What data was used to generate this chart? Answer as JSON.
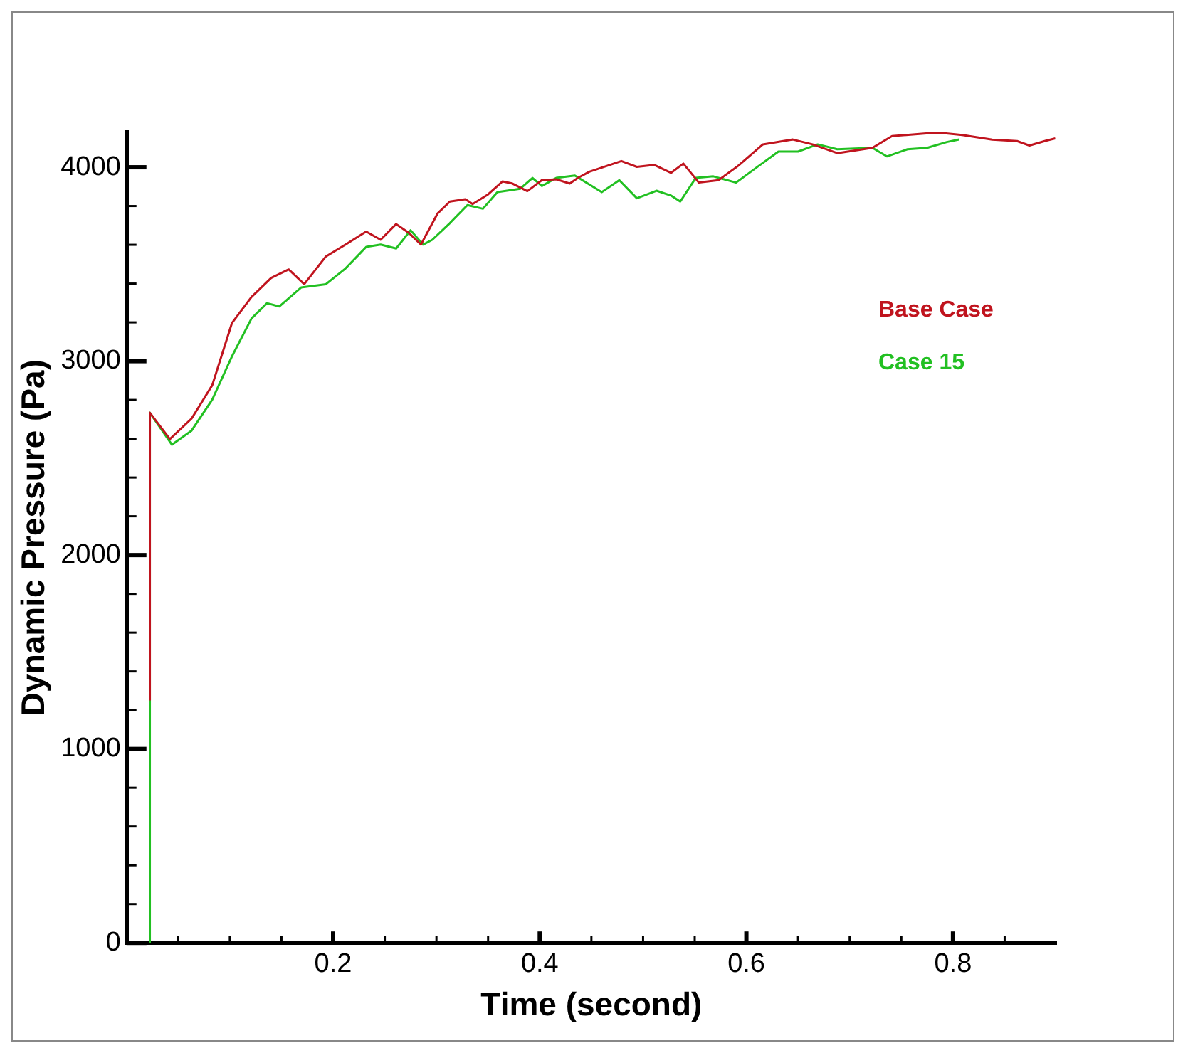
{
  "chart_data": {
    "type": "line",
    "xlabel": "Time (second)",
    "ylabel": "Dynamic Pressure (Pa)",
    "xlim": [
      0,
      0.9
    ],
    "ylim": [
      0,
      4180
    ],
    "xticks": [
      {
        "value": 0.05,
        "label": null
      },
      {
        "value": 0.1,
        "label": null
      },
      {
        "value": 0.15,
        "label": null
      },
      0.2,
      {
        "value": 0.25,
        "label": null
      },
      {
        "value": 0.3,
        "label": null
      },
      {
        "value": 0.35,
        "label": null
      },
      0.4,
      {
        "value": 0.45,
        "label": null
      },
      {
        "value": 0.5,
        "label": null
      },
      {
        "value": 0.55,
        "label": null
      },
      0.6,
      {
        "value": 0.65,
        "label": null
      },
      {
        "value": 0.7,
        "label": null
      },
      {
        "value": 0.75,
        "label": null
      },
      0.8,
      {
        "value": 0.85,
        "label": null
      }
    ],
    "yticks": [
      0,
      {
        "value": 200,
        "label": null
      },
      {
        "value": 400,
        "label": null
      },
      {
        "value": 600,
        "label": null
      },
      {
        "value": 800,
        "label": null
      },
      1000,
      {
        "value": 1200,
        "label": null
      },
      {
        "value": 1400,
        "label": null
      },
      {
        "value": 1600,
        "label": null
      },
      {
        "value": 1800,
        "label": null
      },
      2000,
      {
        "value": 2200,
        "label": null
      },
      {
        "value": 2400,
        "label": null
      },
      {
        "value": 2600,
        "label": null
      },
      {
        "value": 2800,
        "label": null
      },
      3000,
      {
        "value": 3200,
        "label": null
      },
      {
        "value": 3400,
        "label": null
      },
      {
        "value": 3600,
        "label": null
      },
      {
        "value": 3800,
        "label": null
      },
      4000
    ],
    "grid": false,
    "legend": "right",
    "marker": "none",
    "line_style": "solid",
    "series": [
      {
        "name": "Base Case",
        "color": "#c0141e",
        "x": [
          0.0226,
          0.0226,
          0.042,
          0.063,
          0.083,
          0.102,
          0.121,
          0.14,
          0.157,
          0.172,
          0.193,
          0.212,
          0.232,
          0.246,
          0.261,
          0.273,
          0.285,
          0.301,
          0.313,
          0.328,
          0.335,
          0.35,
          0.364,
          0.373,
          0.388,
          0.402,
          0.416,
          0.429,
          0.437,
          0.448,
          0.479,
          0.494,
          0.511,
          0.527,
          0.539,
          0.554,
          0.573,
          0.592,
          0.616,
          0.645,
          0.664,
          0.688,
          0.722,
          0.741,
          0.785,
          0.809,
          0.838,
          0.862,
          0.874,
          0.89,
          0.899
        ],
        "values": [
          1250,
          2734,
          2598,
          2704,
          2876,
          3196,
          3331,
          3429,
          3473,
          3397,
          3540,
          3601,
          3668,
          3626,
          3707,
          3663,
          3601,
          3761,
          3823,
          3835,
          3810,
          3860,
          3927,
          3917,
          3877,
          3933,
          3938,
          3916,
          3945,
          3977,
          4032,
          4002,
          4012,
          3971,
          4019,
          3921,
          3933,
          4007,
          4118,
          4143,
          4118,
          4073,
          4100,
          4161,
          4179,
          4166,
          4142,
          4135,
          4112,
          4137,
          4149
        ]
      },
      {
        "name": "Case 15",
        "color": "#22c022",
        "x": [
          0.0226,
          0.0226,
          0.044,
          0.063,
          0.083,
          0.102,
          0.121,
          0.136,
          0.148,
          0.169,
          0.193,
          0.212,
          0.232,
          0.246,
          0.261,
          0.275,
          0.287,
          0.296,
          0.313,
          0.33,
          0.345,
          0.359,
          0.381,
          0.393,
          0.402,
          0.416,
          0.434,
          0.46,
          0.477,
          0.494,
          0.513,
          0.527,
          0.536,
          0.551,
          0.568,
          0.59,
          0.612,
          0.631,
          0.65,
          0.669,
          0.688,
          0.722,
          0.736,
          0.756,
          0.775,
          0.794,
          0.806
        ],
        "values": [
          0,
          2734,
          2569,
          2642,
          2802,
          3024,
          3220,
          3299,
          3282,
          3380,
          3397,
          3478,
          3589,
          3601,
          3581,
          3675,
          3601,
          3626,
          3712,
          3805,
          3786,
          3872,
          3889,
          3945,
          3903,
          3945,
          3957,
          3872,
          3933,
          3840,
          3879,
          3854,
          3823,
          3945,
          3953,
          3921,
          4007,
          4081,
          4081,
          4118,
          4093,
          4100,
          4056,
          4093,
          4100,
          4130,
          4143
        ]
      }
    ]
  }
}
